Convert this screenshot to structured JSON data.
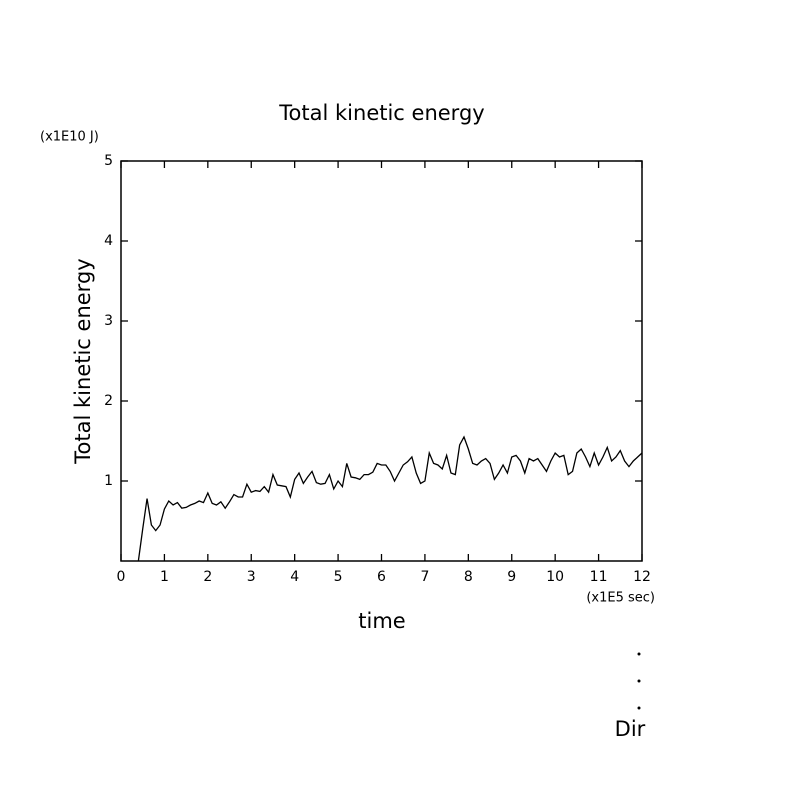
{
  "chart_data": {
    "type": "line",
    "title": "Total kinetic energy",
    "ylabel": "Total kinetic energy",
    "yunit": "(x1E10 J)",
    "xlabel": "time",
    "xunit": "(x1E5 sec)",
    "annotation": "Dir",
    "xlim": [
      0,
      12
    ],
    "ylim": [
      0,
      5
    ],
    "xticks": [
      0,
      1,
      2,
      3,
      4,
      5,
      6,
      7,
      8,
      9,
      10,
      11,
      12
    ],
    "yticks": [
      1,
      2,
      3,
      4,
      5
    ],
    "color": "#000000",
    "x": [
      0.4,
      0.5,
      0.6,
      0.7,
      0.8,
      0.9,
      1.0,
      1.1,
      1.2,
      1.3,
      1.4,
      1.5,
      1.6,
      1.7,
      1.8,
      1.9,
      2.0,
      2.1,
      2.2,
      2.3,
      2.4,
      2.5,
      2.6,
      2.7,
      2.8,
      2.9,
      3.0,
      3.1,
      3.2,
      3.3,
      3.4,
      3.5,
      3.6,
      3.7,
      3.8,
      3.9,
      4.0,
      4.1,
      4.2,
      4.3,
      4.4,
      4.5,
      4.6,
      4.7,
      4.8,
      4.9,
      5.0,
      5.1,
      5.2,
      5.3,
      5.4,
      5.5,
      5.6,
      5.7,
      5.8,
      5.9,
      6.0,
      6.1,
      6.2,
      6.3,
      6.4,
      6.5,
      6.6,
      6.7,
      6.8,
      6.9,
      7.0,
      7.1,
      7.2,
      7.3,
      7.4,
      7.5,
      7.6,
      7.7,
      7.8,
      7.9,
      8.0,
      8.1,
      8.2,
      8.3,
      8.4,
      8.5,
      8.6,
      8.7,
      8.8,
      8.9,
      9.0,
      9.1,
      9.2,
      9.3,
      9.4,
      9.5,
      9.6,
      9.7,
      9.8,
      9.9,
      10.0,
      10.1,
      10.2,
      10.3,
      10.4,
      10.5,
      10.6,
      10.7,
      10.8,
      10.9,
      11.0,
      11.1,
      11.2,
      11.3,
      11.4,
      11.5,
      11.6,
      11.7,
      11.8,
      11.9,
      12.0
    ],
    "values": [
      0,
      0.4,
      0.78,
      0.45,
      0.38,
      0.45,
      0.65,
      0.75,
      0.7,
      0.73,
      0.66,
      0.67,
      0.7,
      0.72,
      0.75,
      0.73,
      0.85,
      0.72,
      0.7,
      0.74,
      0.66,
      0.74,
      0.83,
      0.8,
      0.8,
      0.96,
      0.86,
      0.88,
      0.87,
      0.93,
      0.86,
      1.08,
      0.95,
      0.94,
      0.93,
      0.8,
      1.02,
      1.1,
      0.97,
      1.05,
      1.12,
      0.98,
      0.96,
      0.97,
      1.08,
      0.9,
      1.0,
      0.93,
      1.22,
      1.05,
      1.04,
      1.02,
      1.08,
      1.08,
      1.11,
      1.22,
      1.2,
      1.2,
      1.12,
      1.0,
      1.1,
      1.2,
      1.24,
      1.3,
      1.1,
      0.97,
      1.0,
      1.35,
      1.22,
      1.2,
      1.15,
      1.32,
      1.1,
      1.08,
      1.45,
      1.55,
      1.4,
      1.22,
      1.2,
      1.25,
      1.28,
      1.22,
      1.02,
      1.1,
      1.2,
      1.1,
      1.3,
      1.32,
      1.25,
      1.1,
      1.28,
      1.25,
      1.28,
      1.2,
      1.12,
      1.25,
      1.35,
      1.3,
      1.32,
      1.08,
      1.12,
      1.35,
      1.4,
      1.3,
      1.18,
      1.35,
      1.2,
      1.3,
      1.42,
      1.25,
      1.3,
      1.38,
      1.25,
      1.18,
      1.25,
      1.3,
      1.35
    ]
  }
}
